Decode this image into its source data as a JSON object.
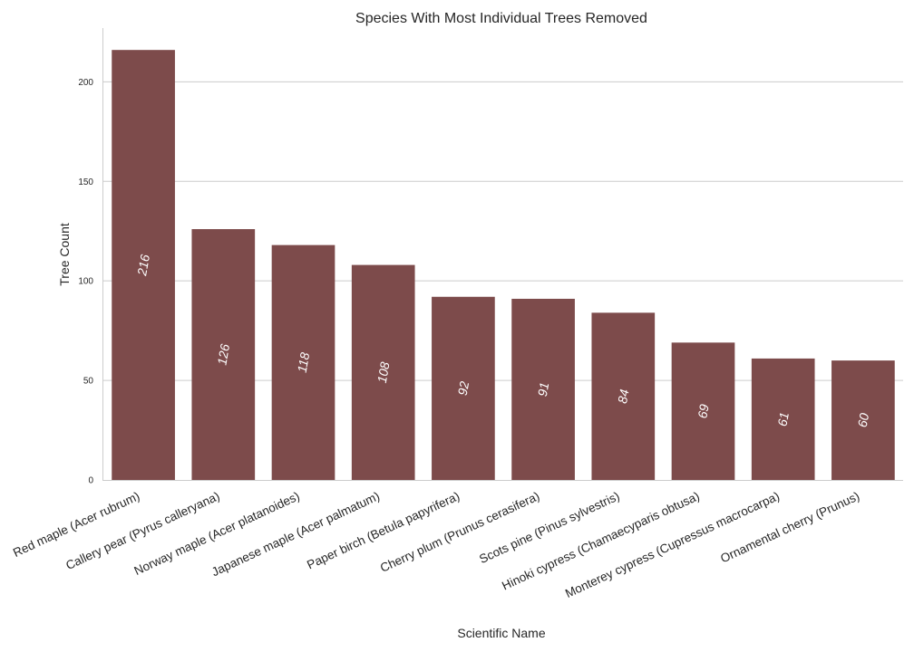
{
  "chart_data": {
    "type": "bar",
    "title": "Species With Most Individual Trees Removed",
    "xlabel": "Scientific Name",
    "ylabel": "Tree Count",
    "ylim": [
      0,
      227
    ],
    "yticks": [
      0,
      50,
      100,
      150,
      200
    ],
    "grid": "y",
    "bar_color": "#7d4b4b",
    "categories": [
      "Red maple (Acer rubrum)",
      "Callery pear (Pyrus calleryana)",
      "Norway maple (Acer platanoides)",
      "Japanese maple (Acer palmatum)",
      "Paper birch (Betula papyrifera)",
      "Cherry plum (Prunus cerasifera)",
      "Scots pine (Pinus sylvestris)",
      "Hinoki cypress (Chamaecyparis obtusa)",
      "Monterey cypress (Cupressus macrocarpa)",
      "Ornamental cherry (Prunus)"
    ],
    "values": [
      216,
      126,
      118,
      108,
      92,
      91,
      84,
      69,
      61,
      60
    ],
    "data_labels": [
      "216",
      "126",
      "118",
      "108",
      "92",
      "91",
      "84",
      "69",
      "61",
      "60"
    ]
  }
}
